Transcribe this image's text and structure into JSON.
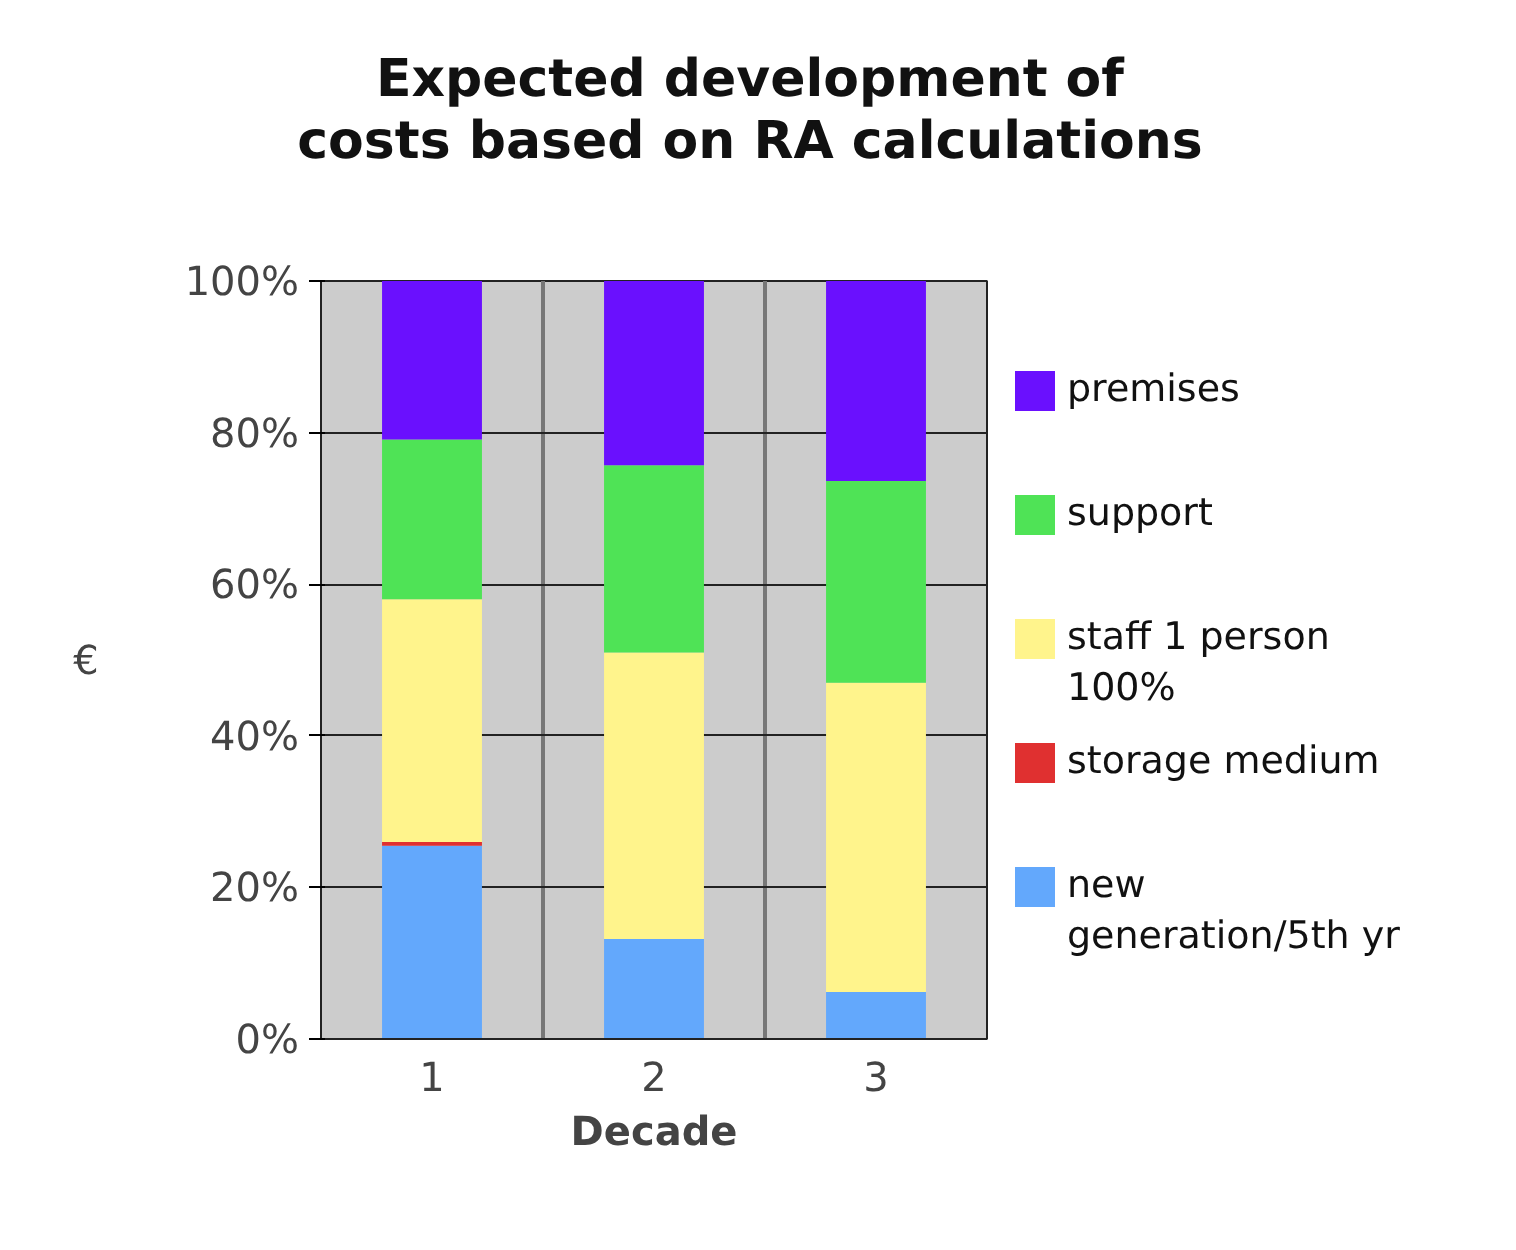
{
  "chart_data": {
    "type": "bar",
    "title": "Expected development of\ncosts based on RA calculations",
    "xlabel": "Decade",
    "ylabel": "€",
    "categories": [
      "1",
      "2",
      "3"
    ],
    "stacked": true,
    "series": [
      {
        "name": "new generation/5th yr",
        "color": "#63a8fc",
        "values": [
          25.5,
          13.2,
          6.2
        ]
      },
      {
        "name": "storage medium",
        "color": "#e03030",
        "values": [
          0.5,
          0,
          0
        ]
      },
      {
        "name": "staff 1 person 100%",
        "color": "#fff48c",
        "values": [
          32.0,
          37.8,
          40.8
        ]
      },
      {
        "name": "support",
        "color": "#4fe356",
        "values": [
          21.1,
          24.7,
          26.6
        ]
      },
      {
        "name": "premises",
        "color": "#6a10fe",
        "values": [
          20.9,
          24.3,
          26.4
        ]
      }
    ],
    "ylim": [
      0,
      100
    ],
    "yticks": [
      {
        "value": 0,
        "label": "0%"
      },
      {
        "value": 20,
        "label": "20%"
      },
      {
        "value": 40,
        "label": "40%"
      },
      {
        "value": 60,
        "label": "60%"
      },
      {
        "value": 80,
        "label": "80%"
      },
      {
        "value": 100,
        "label": "100%"
      }
    ],
    "grid": true,
    "legend": "right"
  }
}
